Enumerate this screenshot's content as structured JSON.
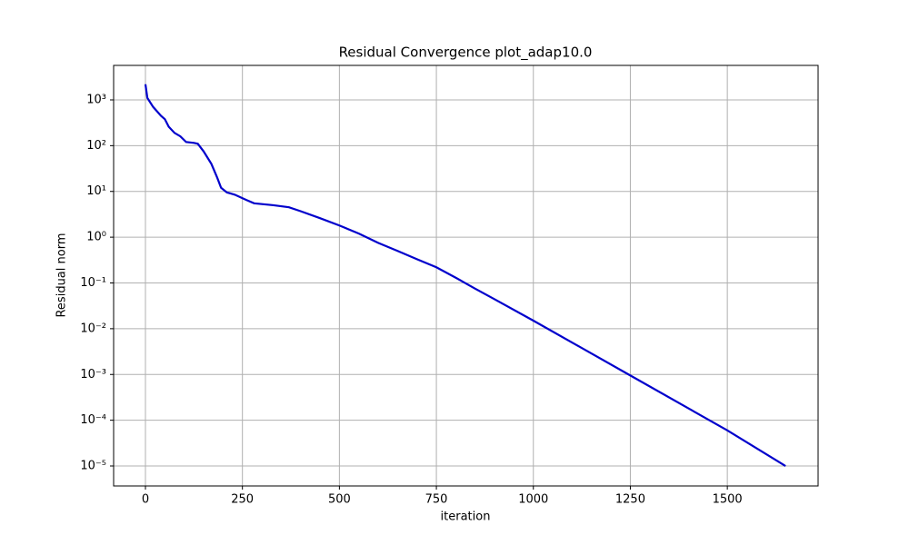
{
  "chart_data": {
    "type": "line",
    "title": "Residual Convergence plot_adap10.0",
    "x_label": "iteration",
    "y_label": "Residual norm",
    "y_scale": "log",
    "grid": true,
    "x": [
      0,
      5,
      20,
      40,
      50,
      60,
      75,
      90,
      105,
      125,
      135,
      150,
      170,
      185,
      195,
      210,
      230,
      260,
      280,
      330,
      370,
      400,
      450,
      500,
      550,
      600,
      650,
      700,
      750,
      800,
      850,
      900,
      1000,
      1250,
      1500,
      1650
    ],
    "series": [
      {
        "name": "residual",
        "color": "#0000cc",
        "values": [
          2200,
          1100,
          700,
          450,
          380,
          260,
          190,
          160,
          120,
          115,
          110,
          75,
          40,
          20,
          12,
          9.5,
          8.5,
          6.5,
          5.5,
          5,
          4.5,
          3.7,
          2.6,
          1.8,
          1.2,
          0.75,
          0.5,
          0.33,
          0.22,
          0.13,
          0.075,
          0.044,
          0.015,
          0.00095,
          6e-05,
          1e-05
        ]
      }
    ],
    "xlim": [
      -82,
      1734
    ],
    "ylim": [
      3.66e-06,
      5675
    ],
    "xticks": [
      0,
      250,
      500,
      750,
      1000,
      1250,
      1500
    ],
    "yticks": [
      {
        "value": 1e-05,
        "label": "10⁻⁵"
      },
      {
        "value": 0.0001,
        "label": "10⁻⁴"
      },
      {
        "value": 0.001,
        "label": "10⁻³"
      },
      {
        "value": 0.01,
        "label": "10⁻²"
      },
      {
        "value": 0.1,
        "label": "10⁻¹"
      },
      {
        "value": 1,
        "label": "10⁰"
      },
      {
        "value": 10,
        "label": "10¹"
      },
      {
        "value": 100,
        "label": "10²"
      },
      {
        "value": 1000,
        "label": "10³"
      }
    ]
  }
}
